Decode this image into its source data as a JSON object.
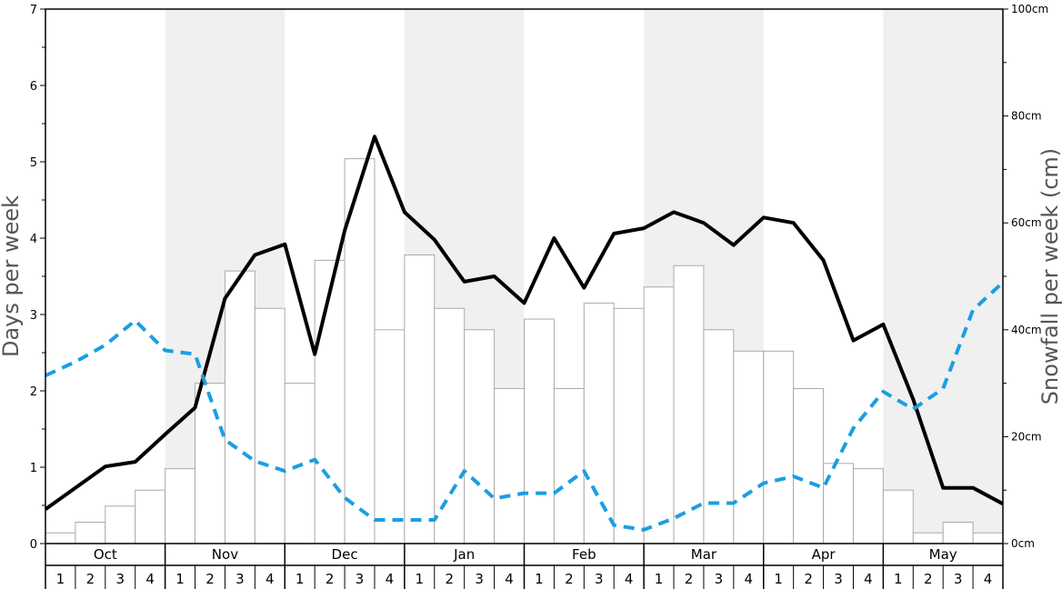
{
  "chart_data": {
    "type": "bar+line",
    "title": "",
    "ylabel_left": "Days per week",
    "ylabel_right": "Snowfall per week (cm)",
    "ylim_left": [
      0,
      7
    ],
    "ylim_right": [
      0,
      100
    ],
    "left_ticks": [
      "0",
      "1",
      "2",
      "3",
      "4",
      "5",
      "6",
      "7"
    ],
    "right_ticks": [
      "0cm",
      "20cm",
      "40cm",
      "60cm",
      "80cm",
      "100cm"
    ],
    "months": [
      "Oct",
      "Nov",
      "Dec",
      "Jan",
      "Feb",
      "Mar",
      "Apr",
      "May"
    ],
    "weeks": [
      "1",
      "2",
      "3",
      "4"
    ],
    "alt_shading": true,
    "colors": {
      "bars_fill": "#ffffff",
      "bars_stroke": "#aaaaaa",
      "solid_line": "#000000",
      "dashed_line": "#1a9fe0",
      "shade": "#f0f0f0"
    },
    "series": [
      {
        "type": "bar",
        "axis": "right",
        "values": [
          2,
          4,
          7,
          10,
          14,
          30,
          51,
          44,
          30,
          53,
          72,
          40,
          54,
          44,
          40,
          29,
          42,
          29,
          45,
          44,
          48,
          52,
          40,
          36,
          36,
          29,
          15,
          14,
          10,
          2,
          4,
          2
        ]
      },
      {
        "type": "line",
        "style": "solid",
        "axis": "left",
        "values": [
          0.45,
          0.73,
          1.01,
          1.07,
          1.43,
          1.78,
          3.21,
          3.78,
          3.92,
          2.48,
          4.1,
          5.33,
          4.34,
          3.98,
          3.43,
          3.5,
          3.15,
          4.0,
          3.35,
          4.06,
          4.13,
          4.34,
          4.2,
          3.91,
          4.27,
          4.2,
          3.71,
          2.66,
          2.87,
          1.89,
          0.73,
          0.73,
          0.52
        ]
      },
      {
        "type": "line",
        "style": "dashed",
        "axis": "left",
        "values": [
          2.2,
          2.38,
          2.6,
          2.92,
          2.53,
          2.48,
          1.36,
          1.08,
          0.95,
          1.1,
          0.6,
          0.31,
          0.31,
          0.31,
          0.95,
          0.59,
          0.66,
          0.66,
          0.95,
          0.24,
          0.18,
          0.33,
          0.53,
          0.53,
          0.79,
          0.88,
          0.73,
          1.51,
          1.99,
          1.76,
          2.03,
          3.06,
          3.42
        ]
      }
    ]
  }
}
